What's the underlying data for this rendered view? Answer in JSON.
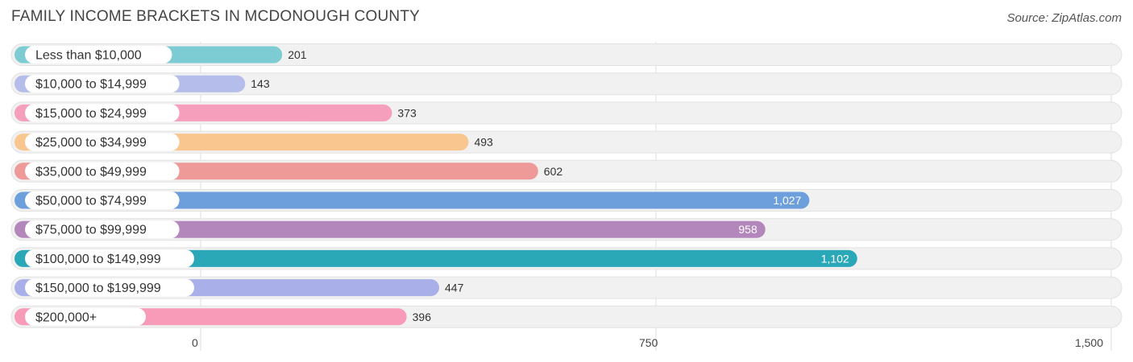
{
  "title": "FAMILY INCOME BRACKETS IN MCDONOUGH COUNTY",
  "source": "Source: ZipAtlas.com",
  "chart_data": {
    "type": "bar",
    "orientation": "horizontal",
    "title": "FAMILY INCOME BRACKETS IN MCDONOUGH COUNTY",
    "categories": [
      "Less than $10,000",
      "$10,000 to $14,999",
      "$15,000 to $24,999",
      "$25,000 to $34,999",
      "$35,000 to $49,999",
      "$50,000 to $74,999",
      "$75,000 to $99,999",
      "$100,000 to $149,999",
      "$150,000 to $199,999",
      "$200,000+"
    ],
    "values": [
      201,
      143,
      373,
      493,
      602,
      1027,
      958,
      1102,
      447,
      396
    ],
    "value_labels": [
      "201",
      "143",
      "373",
      "493",
      "602",
      "1,027",
      "958",
      "1,102",
      "447",
      "396"
    ],
    "colors": [
      "#7dcbd3",
      "#b5bdeb",
      "#f59fbc",
      "#fac68f",
      "#ee9a98",
      "#6c9fdc",
      "#b387bb",
      "#2aa8b8",
      "#a9afe8",
      "#f79bb9"
    ],
    "xlim": [
      0,
      1500
    ],
    "ticks": [
      0,
      750,
      1500
    ],
    "tick_labels": [
      "0",
      "750",
      "1,500"
    ],
    "grid": true,
    "legend": "none"
  }
}
